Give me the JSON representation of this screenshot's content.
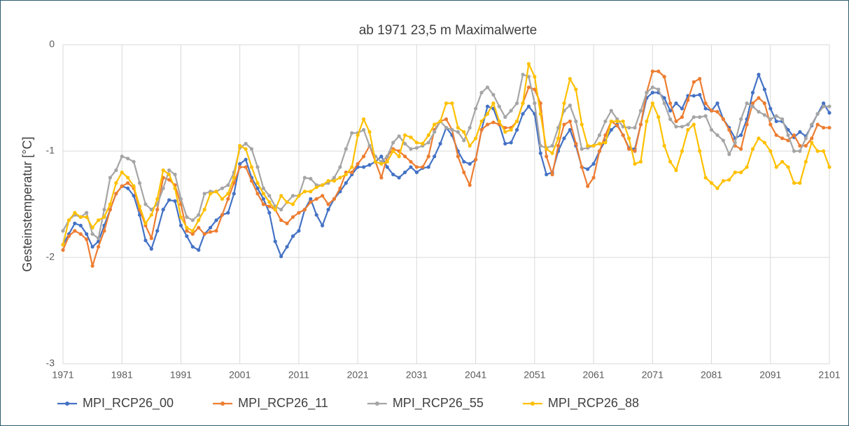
{
  "chart_data": {
    "type": "line",
    "title": "ab 1971    23,5 m Maximalwerte",
    "y_label": "Gesteinstemperatur [°C]",
    "x": [
      1971,
      1972,
      1973,
      1974,
      1975,
      1976,
      1977,
      1978,
      1979,
      1980,
      1981,
      1982,
      1983,
      1984,
      1985,
      1986,
      1987,
      1988,
      1989,
      1990,
      1991,
      1992,
      1993,
      1994,
      1995,
      1996,
      1997,
      1998,
      1999,
      2000,
      2001,
      2002,
      2003,
      2004,
      2005,
      2006,
      2007,
      2008,
      2009,
      2010,
      2011,
      2012,
      2013,
      2014,
      2015,
      2016,
      2017,
      2018,
      2019,
      2020,
      2021,
      2022,
      2023,
      2024,
      2025,
      2026,
      2027,
      2028,
      2029,
      2030,
      2031,
      2032,
      2033,
      2034,
      2035,
      2036,
      2037,
      2038,
      2039,
      2040,
      2041,
      2042,
      2043,
      2044,
      2045,
      2046,
      2047,
      2048,
      2049,
      2050,
      2051,
      2052,
      2053,
      2054,
      2055,
      2056,
      2057,
      2058,
      2059,
      2060,
      2061,
      2062,
      2063,
      2064,
      2065,
      2066,
      2067,
      2068,
      2069,
      2070,
      2071,
      2072,
      2073,
      2074,
      2075,
      2076,
      2077,
      2078,
      2079,
      2080,
      2081,
      2082,
      2083,
      2084,
      2085,
      2086,
      2087,
      2088,
      2089,
      2090,
      2091,
      2092,
      2093,
      2094,
      2095,
      2096,
      2097,
      2098,
      2099,
      2100,
      2101
    ],
    "xlim": [
      1971,
      2101
    ],
    "xticks": [
      1971,
      1981,
      1991,
      2001,
      2011,
      2021,
      2031,
      2041,
      2051,
      2061,
      2071,
      2081,
      2091,
      2101
    ],
    "ylim": [
      -3,
      0
    ],
    "yticks": [
      0,
      -1,
      -2,
      -3
    ],
    "grid": true,
    "legend": "bottom",
    "series": [
      {
        "name": "MPI_RCP26_00",
        "color": "#4472c4",
        "values": [
          -1.88,
          -1.78,
          -1.68,
          -1.7,
          -1.78,
          -1.9,
          -1.85,
          -1.7,
          -1.55,
          -1.4,
          -1.33,
          -1.35,
          -1.42,
          -1.6,
          -1.84,
          -1.92,
          -1.75,
          -1.55,
          -1.46,
          -1.47,
          -1.7,
          -1.8,
          -1.9,
          -1.93,
          -1.78,
          -1.72,
          -1.65,
          -1.6,
          -1.58,
          -1.4,
          -1.12,
          -1.08,
          -1.25,
          -1.35,
          -1.45,
          -1.58,
          -1.85,
          -1.99,
          -1.9,
          -1.8,
          -1.75,
          -1.55,
          -1.45,
          -1.6,
          -1.7,
          -1.55,
          -1.45,
          -1.38,
          -1.3,
          -1.22,
          -1.15,
          -1.15,
          -1.13,
          -1.1,
          -1.05,
          -1.15,
          -1.22,
          -1.25,
          -1.2,
          -1.15,
          -1.2,
          -1.16,
          -1.15,
          -1.05,
          -0.93,
          -0.78,
          -0.85,
          -1.0,
          -1.1,
          -1.12,
          -1.08,
          -0.8,
          -0.58,
          -0.6,
          -0.75,
          -0.93,
          -0.92,
          -0.8,
          -0.65,
          -0.58,
          -0.65,
          -1.02,
          -1.22,
          -1.2,
          -1.0,
          -0.88,
          -0.8,
          -0.95,
          -1.15,
          -1.17,
          -1.12,
          -1.0,
          -0.9,
          -0.8,
          -0.75,
          -0.85,
          -0.97,
          -0.98,
          -0.75,
          -0.5,
          -0.45,
          -0.45,
          -0.5,
          -0.62,
          -0.55,
          -0.6,
          -0.48,
          -0.48,
          -0.47,
          -0.6,
          -0.62,
          -0.55,
          -0.7,
          -0.78,
          -0.88,
          -0.85,
          -0.7,
          -0.45,
          -0.28,
          -0.42,
          -0.6,
          -0.72,
          -0.72,
          -0.8,
          -0.87,
          -0.82,
          -0.86,
          -0.76,
          -0.65,
          -0.55,
          -0.64
        ]
      },
      {
        "name": "MPI_RCP26_11",
        "color": "#ed7d31",
        "values": [
          -1.93,
          -1.8,
          -1.75,
          -1.78,
          -1.83,
          -2.08,
          -1.9,
          -1.75,
          -1.55,
          -1.4,
          -1.33,
          -1.3,
          -1.35,
          -1.55,
          -1.7,
          -1.82,
          -1.55,
          -1.25,
          -1.27,
          -1.32,
          -1.5,
          -1.75,
          -1.78,
          -1.72,
          -1.78,
          -1.76,
          -1.75,
          -1.6,
          -1.45,
          -1.3,
          -1.15,
          -1.15,
          -1.28,
          -1.4,
          -1.5,
          -1.52,
          -1.55,
          -1.65,
          -1.68,
          -1.62,
          -1.58,
          -1.55,
          -1.48,
          -1.45,
          -1.42,
          -1.5,
          -1.45,
          -1.35,
          -1.2,
          -1.2,
          -1.12,
          -1.05,
          -0.95,
          -1.1,
          -1.25,
          -1.05,
          -0.98,
          -1.0,
          -1.05,
          -1.1,
          -1.15,
          -1.15,
          -1.05,
          -0.8,
          -0.72,
          -0.7,
          -0.8,
          -1.05,
          -1.2,
          -1.32,
          -1.08,
          -0.8,
          -0.75,
          -0.73,
          -0.75,
          -0.78,
          -0.78,
          -0.72,
          -0.55,
          -0.4,
          -0.42,
          -0.55,
          -1.05,
          -1.22,
          -0.95,
          -0.75,
          -0.72,
          -0.93,
          -1.15,
          -1.33,
          -1.25,
          -1.0,
          -0.85,
          -0.72,
          -0.76,
          -0.85,
          -0.98,
          -1.0,
          -0.75,
          -0.45,
          -0.25,
          -0.25,
          -0.3,
          -0.55,
          -0.72,
          -0.68,
          -0.52,
          -0.35,
          -0.32,
          -0.55,
          -0.62,
          -0.63,
          -0.7,
          -0.8,
          -0.95,
          -0.98,
          -0.75,
          -0.55,
          -0.5,
          -0.55,
          -0.75,
          -0.85,
          -0.88,
          -0.9,
          -0.85,
          -0.95,
          -0.95,
          -0.88,
          -0.75,
          -0.78,
          -0.78
        ]
      },
      {
        "name": "MPI_RCP26_55",
        "color": "#a5a5a5",
        "values": [
          -1.75,
          -1.65,
          -1.6,
          -1.62,
          -1.58,
          -1.78,
          -1.82,
          -1.55,
          -1.25,
          -1.18,
          -1.05,
          -1.07,
          -1.1,
          -1.3,
          -1.5,
          -1.55,
          -1.5,
          -1.35,
          -1.18,
          -1.22,
          -1.45,
          -1.62,
          -1.65,
          -1.6,
          -1.4,
          -1.38,
          -1.38,
          -1.35,
          -1.32,
          -1.2,
          -0.97,
          -0.93,
          -0.98,
          -1.15,
          -1.35,
          -1.42,
          -1.52,
          -1.55,
          -1.48,
          -1.42,
          -1.42,
          -1.25,
          -1.26,
          -1.32,
          -1.32,
          -1.3,
          -1.25,
          -1.15,
          -0.98,
          -0.83,
          -0.83,
          -0.8,
          -0.95,
          -1.05,
          -1.1,
          -1.05,
          -0.92,
          -0.86,
          -0.93,
          -0.98,
          -0.97,
          -0.95,
          -0.92,
          -0.82,
          -0.72,
          -0.78,
          -0.8,
          -0.82,
          -0.9,
          -0.78,
          -0.6,
          -0.45,
          -0.4,
          -0.47,
          -0.58,
          -0.68,
          -0.62,
          -0.55,
          -0.28,
          -0.3,
          -0.55,
          -0.95,
          -0.97,
          -0.95,
          -0.78,
          -0.62,
          -0.57,
          -0.72,
          -0.98,
          -0.97,
          -0.95,
          -0.85,
          -0.72,
          -0.62,
          -0.7,
          -0.77,
          -0.78,
          -0.78,
          -0.62,
          -0.45,
          -0.4,
          -0.42,
          -0.55,
          -0.7,
          -0.77,
          -0.77,
          -0.75,
          -0.68,
          -0.68,
          -0.67,
          -0.8,
          -0.85,
          -0.9,
          -1.03,
          -0.92,
          -0.7,
          -0.55,
          -0.58,
          -0.63,
          -0.66,
          -0.7,
          -0.67,
          -0.7,
          -0.85,
          -1.0,
          -1.0,
          -0.88,
          -0.75,
          -0.65,
          -0.58,
          -0.58
        ]
      },
      {
        "name": "MPI_RCP26_88",
        "color": "#ffc000",
        "values": [
          -1.88,
          -1.65,
          -1.58,
          -1.62,
          -1.62,
          -1.72,
          -1.65,
          -1.62,
          -1.5,
          -1.3,
          -1.2,
          -1.25,
          -1.33,
          -1.52,
          -1.68,
          -1.6,
          -1.45,
          -1.18,
          -1.22,
          -1.35,
          -1.62,
          -1.72,
          -1.75,
          -1.65,
          -1.55,
          -1.4,
          -1.38,
          -1.45,
          -1.4,
          -1.25,
          -0.95,
          -0.98,
          -1.15,
          -1.3,
          -1.4,
          -1.48,
          -1.55,
          -1.42,
          -1.48,
          -1.5,
          -1.42,
          -1.38,
          -1.38,
          -1.34,
          -1.32,
          -1.28,
          -1.28,
          -1.25,
          -1.22,
          -1.15,
          -0.85,
          -0.7,
          -0.82,
          -1.1,
          -1.12,
          -1.1,
          -1.0,
          -1.05,
          -0.85,
          -0.87,
          -0.92,
          -0.93,
          -0.85,
          -0.75,
          -0.72,
          -0.55,
          -0.55,
          -0.78,
          -0.82,
          -0.95,
          -0.88,
          -0.72,
          -0.65,
          -0.55,
          -0.72,
          -0.82,
          -0.8,
          -0.72,
          -0.55,
          -0.18,
          -0.3,
          -0.65,
          -0.98,
          -1.02,
          -0.88,
          -0.55,
          -0.32,
          -0.42,
          -0.75,
          -0.95,
          -0.95,
          -0.93,
          -0.92,
          -0.72,
          -0.72,
          -0.72,
          -0.88,
          -1.12,
          -1.1,
          -0.72,
          -0.55,
          -0.68,
          -0.95,
          -1.1,
          -1.18,
          -1.0,
          -0.8,
          -0.75,
          -1.0,
          -1.25,
          -1.3,
          -1.35,
          -1.28,
          -1.27,
          -1.2,
          -1.2,
          -1.15,
          -0.98,
          -0.88,
          -0.92,
          -1.0,
          -1.15,
          -1.1,
          -1.15,
          -1.3,
          -1.3,
          -1.1,
          -0.92,
          -1.0,
          -1.0,
          -1.15
        ]
      }
    ]
  }
}
